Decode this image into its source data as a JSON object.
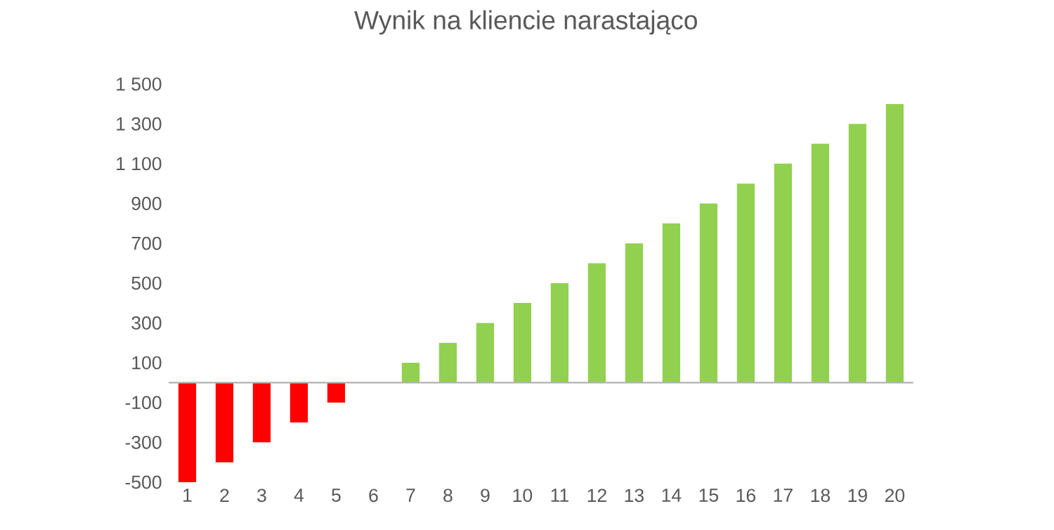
{
  "chart_data": {
    "type": "bar",
    "title": "Wynik na kliencie narastająco",
    "categories": [
      "1",
      "2",
      "3",
      "4",
      "5",
      "6",
      "7",
      "8",
      "9",
      "10",
      "11",
      "12",
      "13",
      "14",
      "15",
      "16",
      "17",
      "18",
      "19",
      "20"
    ],
    "values": [
      -500,
      -400,
      -300,
      -200,
      -100,
      0,
      100,
      200,
      300,
      400,
      500,
      600,
      700,
      800,
      900,
      1000,
      1100,
      1200,
      1300,
      1400
    ],
    "colors": [
      "#ff0000",
      "#ff0000",
      "#ff0000",
      "#ff0000",
      "#ff0000",
      "#92d050",
      "#92d050",
      "#92d050",
      "#92d050",
      "#92d050",
      "#92d050",
      "#92d050",
      "#92d050",
      "#92d050",
      "#92d050",
      "#92d050",
      "#92d050",
      "#92d050",
      "#92d050",
      "#92d050"
    ],
    "ylim": [
      -500,
      1500
    ],
    "yticks": [
      -500,
      -300,
      -100,
      100,
      300,
      500,
      700,
      900,
      {
        "value": 1100,
        "label": "1 100"
      },
      {
        "value": 1300,
        "label": "1 300"
      },
      {
        "value": 1500,
        "label": "1 500"
      }
    ]
  }
}
